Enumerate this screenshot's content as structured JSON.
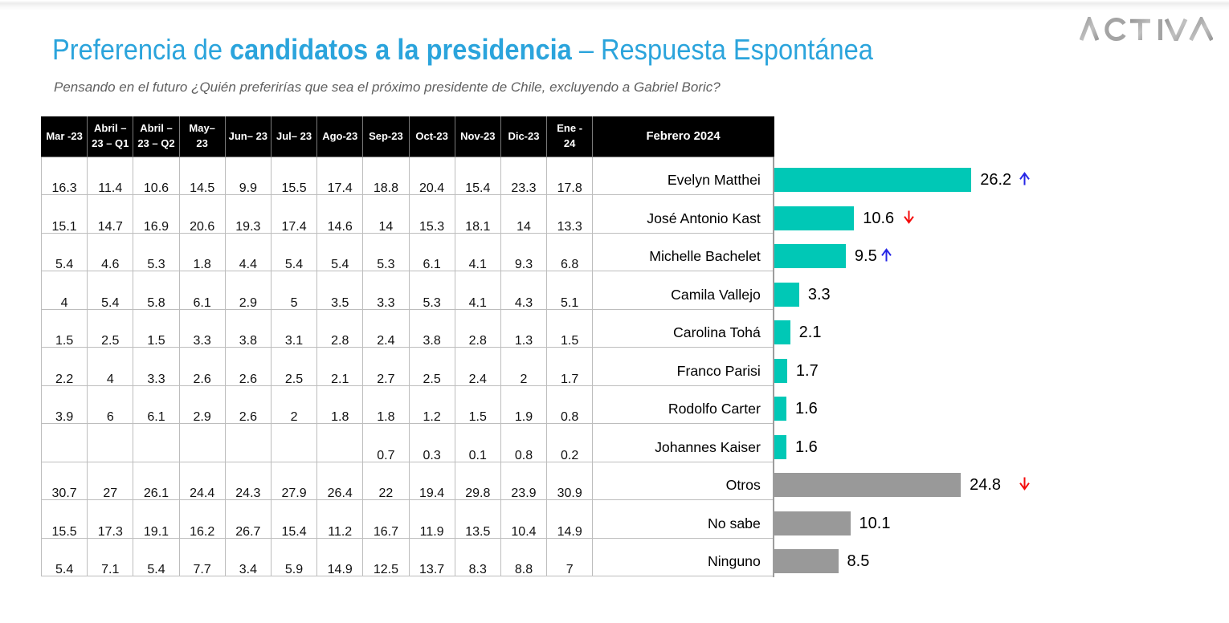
{
  "page": {
    "title_regular_1": "Preferencia de ",
    "title_bold": "candidatos a la presidencia",
    "title_regular_2": " – Respuesta Espontánea",
    "subtitle": "Pensando en el futuro ¿Quién preferirías que sea el próximo presidente de Chile, excluyendo a Gabriel Boric?",
    "logo_text": "ACTIVA"
  },
  "colors": {
    "title_blue": "#2BA4DC",
    "bar_teal": "#00C8B6",
    "bar_gray": "#999999",
    "arrow_up": "#2525E6",
    "arrow_down": "#F40A0A",
    "header_bg": "#000000",
    "header_text": "#FFFFFF",
    "grid_line": "#BDBDBD"
  },
  "chart_data": {
    "type": "bar",
    "orientation": "horizontal",
    "title": "Preferencia de candidatos a la presidencia – Respuesta Espontánea",
    "column_headers": [
      "Mar -23",
      "Abril –\n23 – Q1",
      "Abril –\n23 – Q2",
      "May–\n23",
      "Jun– 23",
      "Jul– 23",
      "Ago-23",
      "Sep-23",
      "Oct-23",
      "Nov-23",
      "Dic-23",
      "Ene -\n24",
      "Febrero 2024"
    ],
    "current_period": "Febrero 2024",
    "categories": [
      "Evelyn Matthei",
      "José Antonio Kast",
      "Michelle Bachelet",
      "Camila Vallejo",
      "Carolina Tohá",
      "Franco Parisi",
      "Rodolfo Carter",
      "Johannes Kaiser",
      "Otros",
      "No sabe",
      "Ninguno"
    ],
    "series": [
      {
        "name": "Febrero 2024",
        "values": [
          26.2,
          10.6,
          9.5,
          3.3,
          2.1,
          1.7,
          1.6,
          1.6,
          24.8,
          10.1,
          8.5
        ]
      }
    ],
    "axis_range": [
      0,
      28
    ],
    "grid": false,
    "legend": false,
    "rows": [
      {
        "name": "Evelyn Matthei",
        "history": [
          "16.3",
          "11.4",
          "10.6",
          "14.5",
          "9.9",
          "15.5",
          "17.4",
          "18.8",
          "20.4",
          "15.4",
          "23.3",
          "17.8"
        ],
        "value": 26.2,
        "label": "26.2",
        "color": "teal",
        "trend": "up",
        "trend_gap": 10
      },
      {
        "name": "José Antonio Kast",
        "history": [
          "15.1",
          "14.7",
          "16.9",
          "20.6",
          "19.3",
          "17.4",
          "14.6",
          "14",
          "15.3",
          "18.1",
          "14",
          "13.3"
        ],
        "value": 10.6,
        "label": "10.6",
        "color": "teal",
        "trend": "down",
        "trend_gap": 12
      },
      {
        "name": "Michelle Bachelet",
        "history": [
          "5.4",
          "4.6",
          "5.3",
          "1.8",
          "4.4",
          "5.4",
          "5.4",
          "5.3",
          "6.1",
          "4.1",
          "9.3",
          "6.8"
        ],
        "value": 9.5,
        "label": "9.5",
        "color": "teal",
        "trend": "up",
        "trend_gap": 5
      },
      {
        "name": "Camila Vallejo",
        "history": [
          "4",
          "5.4",
          "5.8",
          "6.1",
          "2.9",
          "5",
          "3.5",
          "3.3",
          "5.3",
          "4.1",
          "4.3",
          "5.1"
        ],
        "value": 3.3,
        "label": "3.3",
        "color": "teal",
        "trend": "",
        "trend_gap": 0
      },
      {
        "name": "Carolina Tohá",
        "history": [
          "1.5",
          "2.5",
          "1.5",
          "3.3",
          "3.8",
          "3.1",
          "2.8",
          "2.4",
          "3.8",
          "2.8",
          "1.3",
          "1.5"
        ],
        "value": 2.1,
        "label": "2.1",
        "color": "teal",
        "trend": "",
        "trend_gap": 0
      },
      {
        "name": "Franco Parisi",
        "history": [
          "2.2",
          "4",
          "3.3",
          "2.6",
          "2.6",
          "2.5",
          "2.1",
          "2.7",
          "2.5",
          "2.4",
          "2",
          "1.7"
        ],
        "value": 1.7,
        "label": "1.7",
        "color": "teal",
        "trend": "",
        "trend_gap": 0
      },
      {
        "name": "Rodolfo Carter",
        "history": [
          "3.9",
          "6",
          "6.1",
          "2.9",
          "2.6",
          "2",
          "1.8",
          "1.8",
          "1.2",
          "1.5",
          "1.9",
          "0.8"
        ],
        "value": 1.6,
        "label": "1.6",
        "color": "teal",
        "trend": "",
        "trend_gap": 0
      },
      {
        "name": "Johannes Kaiser",
        "history": [
          "",
          "",
          "",
          "",
          "",
          "",
          "",
          "0.7",
          "0.3",
          "0.1",
          "0.8",
          "0.2"
        ],
        "value": 1.6,
        "label": "1.6",
        "color": "teal",
        "trend": "",
        "trend_gap": 0
      },
      {
        "name": "Otros",
        "history": [
          "30.7",
          "27",
          "26.1",
          "24.4",
          "24.3",
          "27.9",
          "26.4",
          "22",
          "19.4",
          "29.8",
          "23.9",
          "30.9"
        ],
        "value": 24.8,
        "label": "24.8",
        "color": "gray",
        "trend": "down",
        "trend_gap": 23
      },
      {
        "name": "No sabe",
        "history": [
          "15.5",
          "17.3",
          "19.1",
          "16.2",
          "26.7",
          "15.4",
          "11.2",
          "16.7",
          "11.9",
          "13.5",
          "10.4",
          "14.9"
        ],
        "value": 10.1,
        "label": "10.1",
        "color": "gray",
        "trend": "",
        "trend_gap": 0
      },
      {
        "name": "Ninguno",
        "history": [
          "5.4",
          "7.1",
          "5.4",
          "7.7",
          "3.4",
          "5.9",
          "14.9",
          "12.5",
          "13.7",
          "8.3",
          "8.8",
          "7"
        ],
        "value": 8.5,
        "label": "8.5",
        "color": "gray",
        "trend": "",
        "trend_gap": 0
      }
    ]
  }
}
